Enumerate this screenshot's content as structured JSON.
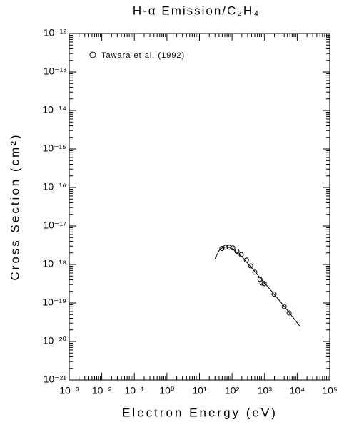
{
  "chart_data": {
    "type": "scatter",
    "title": "H-α Emission/C₂H₄",
    "x_label": "Electron Energy (eV)",
    "y_label": "Cross Section (cm²)",
    "log_x": true,
    "log_y": true,
    "minor_ticks": true,
    "legend_position": "upper left",
    "xlim": [
      0.001,
      100000
    ],
    "ylim": [
      1e-21,
      1e-12
    ],
    "xticks": [
      {
        "value": 0.001,
        "label": "10⁻³"
      },
      {
        "value": 0.01,
        "label": "10⁻²"
      },
      {
        "value": 0.1,
        "label": "10⁻¹"
      },
      {
        "value": 1,
        "label": "10⁰"
      },
      {
        "value": 10,
        "label": "10¹"
      },
      {
        "value": 100,
        "label": "10²"
      },
      {
        "value": 1000,
        "label": "10³"
      },
      {
        "value": 10000,
        "label": "10⁴"
      },
      {
        "value": 100000,
        "label": "10⁵"
      }
    ],
    "yticks": [
      {
        "value": 1e-21,
        "label": "10⁻²¹"
      },
      {
        "value": 1e-20,
        "label": "10⁻²⁰"
      },
      {
        "value": 1e-19,
        "label": "10⁻¹⁹"
      },
      {
        "value": 1e-18,
        "label": "10⁻¹⁸"
      },
      {
        "value": 1e-17,
        "label": "10⁻¹⁷"
      },
      {
        "value": 1e-16,
        "label": "10⁻¹⁶"
      },
      {
        "value": 1e-15,
        "label": "10⁻¹⁵"
      },
      {
        "value": 1e-14,
        "label": "10⁻¹⁴"
      },
      {
        "value": 1e-13,
        "label": "10⁻¹³"
      },
      {
        "value": 1e-12,
        "label": "10⁻¹²"
      }
    ],
    "series": [
      {
        "name": "Tawara et al. (1992)",
        "color": "#000000",
        "marker": "circle",
        "x": [
          49,
          63,
          81,
          105,
          141,
          191,
          275,
          371,
          501,
          720,
          830,
          970,
          1950,
          3980,
          5650
        ],
        "values": [
          2.6e-18,
          2.8e-18,
          2.8e-18,
          2.7e-18,
          2.2e-18,
          1.8e-18,
          1.3e-18,
          9.2e-19,
          6.3e-19,
          4.1e-19,
          3.3e-19,
          3.2e-19,
          1.7e-19,
          8.1e-20,
          5.5e-20
        ]
      },
      {
        "color": "#000000",
        "marker": "line",
        "x": [
          30,
          40,
          50,
          70,
          100,
          200,
          500,
          1000,
          2000,
          5000,
          12000
        ],
        "values": [
          1.4e-18,
          2.3e-18,
          2.7e-18,
          2.9e-18,
          2.6e-18,
          1.6e-18,
          6.5e-19,
          3.3e-19,
          1.65e-19,
          6.5e-20,
          2.5e-20
        ]
      }
    ]
  }
}
